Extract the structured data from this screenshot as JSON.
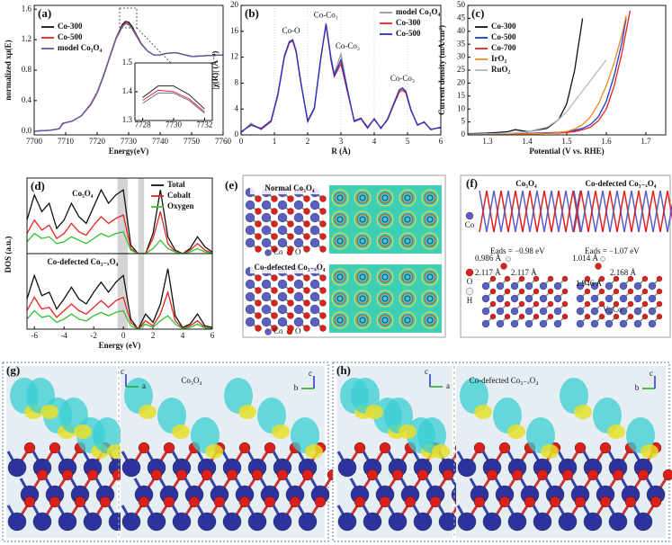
{
  "chart_data": [
    {
      "type": "line",
      "label": "(a)",
      "xlabel": "Energy(eV)",
      "ylabel": "normalized xμ(E)",
      "x": [
        7700,
        7705,
        7708,
        7709,
        7710,
        7712,
        7715,
        7718,
        7720,
        7722,
        7724,
        7726,
        7728,
        7729,
        7730,
        7731,
        7732,
        7734,
        7736,
        7738,
        7740,
        7742,
        7745,
        7748,
        7750,
        7755,
        7760
      ],
      "series": [
        {
          "name": "Co-300",
          "color": "#111111",
          "values": [
            0.0,
            0.01,
            0.03,
            0.1,
            0.11,
            0.13,
            0.2,
            0.35,
            0.5,
            0.72,
            0.97,
            1.22,
            1.4,
            1.44,
            1.43,
            1.38,
            1.3,
            1.15,
            1.05,
            1.0,
            1.0,
            1.02,
            1.03,
            1.0,
            0.98,
            0.99,
            1.0
          ]
        },
        {
          "name": "Co-500",
          "color": "#e8231f",
          "values": [
            0.0,
            0.01,
            0.03,
            0.1,
            0.11,
            0.13,
            0.2,
            0.36,
            0.51,
            0.73,
            0.98,
            1.22,
            1.38,
            1.42,
            1.41,
            1.36,
            1.29,
            1.15,
            1.05,
            1.0,
            1.0,
            1.02,
            1.03,
            1.0,
            0.98,
            0.99,
            1.0
          ]
        },
        {
          "name": "model Co₃O₄",
          "color": "#5c5fb0",
          "values": [
            0.0,
            0.01,
            0.03,
            0.09,
            0.11,
            0.13,
            0.2,
            0.35,
            0.5,
            0.72,
            0.97,
            1.21,
            1.37,
            1.41,
            1.4,
            1.35,
            1.28,
            1.14,
            1.05,
            1.0,
            1.0,
            1.02,
            1.03,
            1.0,
            0.98,
            0.99,
            1.0
          ]
        }
      ],
      "xlim": [
        7700,
        7760
      ],
      "xticks": [
        7700,
        7710,
        7720,
        7730,
        7740,
        7750,
        7760
      ],
      "ylim": [
        -0.05,
        1.65
      ],
      "yticks": [
        {
          "value": 0,
          "label": "0.0"
        },
        0.4,
        0.8,
        1.2,
        1.6
      ],
      "legend": "top-left"
    },
    {
      "type": "line",
      "x": [
        7728,
        7729,
        7730,
        7731,
        7732
      ],
      "series": [
        {
          "color": "#111111",
          "values": [
            1.38,
            1.42,
            1.42,
            1.39,
            1.34
          ]
        },
        {
          "color": "#e8231f",
          "values": [
            1.37,
            1.405,
            1.4,
            1.375,
            1.33
          ]
        },
        {
          "color": "#5c5fb0",
          "values": [
            1.36,
            1.395,
            1.395,
            1.37,
            1.325
          ]
        }
      ],
      "xlim": [
        7727.5,
        7732.5
      ],
      "xticks": [
        7728,
        7730,
        7732
      ],
      "ylim": [
        1.3,
        1.5
      ],
      "yticks": [
        1.3,
        1.4,
        1.5
      ]
    },
    {
      "type": "line",
      "label": "(b)",
      "xlabel": "R (Å)",
      "ylabel": "|χ(R)| (Å⁻⁴)",
      "x": [
        0,
        0.3,
        0.6,
        0.9,
        1.1,
        1.3,
        1.45,
        1.55,
        1.65,
        1.8,
        2.0,
        2.2,
        2.4,
        2.55,
        2.7,
        2.8,
        3.0,
        3.2,
        3.4,
        3.6,
        3.8,
        4.0,
        4.2,
        4.4,
        4.6,
        4.75,
        4.85,
        4.95,
        5.1,
        5.3,
        5.5,
        5.7,
        6.0
      ],
      "series": [
        {
          "name": "model Co₃O₄",
          "color": "#9a9a9a",
          "values": [
            0.3,
            1.8,
            0.8,
            2.0,
            6,
            12,
            14.3,
            14.6,
            13,
            8,
            2,
            4,
            12,
            17.3,
            12,
            9.5,
            12.5,
            7,
            2,
            2.5,
            1,
            2.5,
            1,
            2.5,
            5,
            7,
            7.3,
            6.8,
            4,
            1.5,
            2,
            0.8,
            1.2
          ]
        },
        {
          "name": "Co-300",
          "color": "#e8231f",
          "values": [
            0.4,
            1.6,
            0.9,
            2.1,
            6,
            12,
            14.2,
            14.5,
            12.8,
            7.8,
            2.2,
            4.2,
            12,
            17.1,
            11.5,
            9,
            11,
            6.5,
            2.2,
            2.6,
            1.2,
            2.4,
            1.1,
            2.3,
            4.8,
            6.6,
            6.9,
            6.5,
            3.8,
            1.6,
            1.9,
            0.9,
            1.1
          ]
        },
        {
          "name": "Co-500",
          "color": "#2233cc",
          "values": [
            0.5,
            1.5,
            1.0,
            2.2,
            6.2,
            12.2,
            14.4,
            14.7,
            13,
            8,
            2.1,
            4.1,
            12.1,
            17.0,
            11.8,
            9.2,
            11.6,
            6.8,
            2.1,
            2.5,
            1.1,
            2.5,
            1.0,
            2.4,
            5,
            6.9,
            7.2,
            6.7,
            3.9,
            1.5,
            2,
            0.8,
            1.2
          ]
        }
      ],
      "xlim": [
        0,
        6
      ],
      "xticks": [
        0,
        1,
        2,
        3,
        4,
        5,
        6
      ],
      "ylim": [
        0,
        20
      ],
      "yticks": [
        0,
        4,
        8,
        12,
        16,
        20
      ],
      "grid": "x",
      "legend": "top-right",
      "annotations": [
        {
          "text": "Co-O",
          "x": 1.5,
          "y": 16
        },
        {
          "text": "Co-Co₁",
          "x": 2.55,
          "y": 18.4
        },
        {
          "text": "Co-Co₂",
          "x": 3.2,
          "y": 13.6
        },
        {
          "text": "Co-Co₃",
          "x": 4.85,
          "y": 8.6
        }
      ]
    },
    {
      "type": "line",
      "label": "(c)",
      "xlabel": "Potential (V vs. RHE)",
      "ylabel": "Current density (mA/cm²)",
      "x": [
        1.25,
        1.3,
        1.35,
        1.37,
        1.4,
        1.45,
        1.48,
        1.5,
        1.52,
        1.54,
        1.56,
        1.58,
        1.6,
        1.62,
        1.64,
        1.65,
        1.66,
        1.7
      ],
      "series": [
        {
          "name": "Co-300",
          "color": "#111111",
          "values": [
            0.5,
            0.7,
            1.2,
            2.0,
            1.3,
            2.5,
            6,
            12,
            25,
            45,
            null,
            null,
            null,
            null,
            null,
            null,
            null,
            null
          ]
        },
        {
          "name": "Co-500",
          "color": "#1f3bd1",
          "values": [
            0.2,
            0.3,
            0.4,
            0.5,
            0.6,
            0.8,
            1.0,
            1.3,
            1.8,
            2.5,
            4,
            7,
            13,
            23,
            36,
            45,
            null,
            null
          ]
        },
        {
          "name": "Co-700",
          "color": "#e8231f",
          "values": [
            0.1,
            0.2,
            0.3,
            0.4,
            0.5,
            0.6,
            0.7,
            0.9,
            1.3,
            2,
            3,
            5.5,
            10,
            19,
            32,
            40,
            48,
            null
          ]
        },
        {
          "name": "IrO₂",
          "color": "#f08a1c",
          "values": [
            0.1,
            0.2,
            0.3,
            0.3,
            0.4,
            0.6,
            0.9,
            1.3,
            2.3,
            4,
            7,
            12,
            19,
            28,
            39,
            46,
            null,
            null
          ]
        },
        {
          "name": "RuO₂",
          "color": "#b8b8b8",
          "values": [
            0.3,
            0.4,
            0.6,
            0.8,
            1.2,
            3,
            6,
            9,
            13,
            17,
            21,
            25,
            29,
            null,
            null,
            null,
            null,
            null
          ]
        }
      ],
      "xlim": [
        1.25,
        1.75
      ],
      "xticks": [
        1.3,
        1.4,
        1.5,
        1.6,
        1.7
      ],
      "ylim": [
        0,
        50
      ],
      "yticks": [
        0,
        5,
        10,
        15,
        20,
        25,
        30,
        35,
        40,
        45,
        50
      ],
      "legend": "top-left"
    },
    {
      "type": "line",
      "label": "(d)",
      "title": "Co₃O₄",
      "ylabel": "DOS (a.u.)",
      "x": [
        -6.5,
        -6,
        -5.5,
        -5,
        -4.5,
        -4,
        -3.5,
        -3,
        -2.5,
        -2,
        -1.5,
        -1,
        -0.5,
        0,
        0.5,
        1,
        1.5,
        2,
        2.5,
        3,
        3.5,
        4,
        4.5,
        5,
        5.5,
        6
      ],
      "series": [
        {
          "name": "Total",
          "color": "#111111",
          "values": [
            20,
            35,
            25,
            30,
            15,
            20,
            30,
            22,
            18,
            28,
            38,
            30,
            35,
            38,
            5,
            0,
            0,
            12,
            38,
            10,
            2,
            0,
            3,
            10,
            4,
            1
          ]
        },
        {
          "name": "Cobalt",
          "color": "#e8231f",
          "values": [
            12,
            20,
            14,
            17,
            9,
            12,
            18,
            13,
            11,
            17,
            22,
            18,
            21,
            23,
            3,
            0,
            0,
            9,
            25,
            6,
            1,
            0,
            2,
            6,
            2,
            0.5
          ]
        },
        {
          "name": "Oxygen",
          "color": "#2fc42f",
          "values": [
            7,
            12,
            9,
            10,
            6,
            7,
            10,
            8,
            6,
            9,
            12,
            10,
            12,
            13,
            2,
            0,
            0,
            3,
            8,
            3,
            1,
            0,
            1,
            3,
            1,
            0.3
          ]
        }
      ],
      "shaded": [
        [
          -0.4,
          0.3
        ],
        [
          1.0,
          1.4
        ]
      ],
      "xlim": [
        -6.5,
        6
      ],
      "ylim": [
        0,
        45
      ],
      "legend": "top-right"
    },
    {
      "type": "line",
      "title": "Co-defected Co₃₋ₓO₄",
      "xlabel": "Energy (eV)",
      "x": [
        -6.5,
        -6,
        -5.5,
        -5,
        -4.5,
        -4,
        -3.5,
        -3,
        -2.5,
        -2,
        -1.5,
        -1,
        -0.5,
        0,
        0.5,
        1,
        1.5,
        2,
        2.5,
        3,
        3.5,
        4,
        4.5,
        5,
        5.5,
        6
      ],
      "series": [
        {
          "color": "#111111",
          "values": [
            18,
            32,
            20,
            22,
            12,
            18,
            25,
            18,
            15,
            22,
            28,
            22,
            28,
            32,
            6,
            0,
            9,
            4,
            15,
            36,
            8,
            1,
            3,
            9,
            2,
            1
          ]
        },
        {
          "color": "#e8231f",
          "values": [
            11,
            19,
            12,
            13,
            7,
            11,
            15,
            11,
            9,
            13,
            17,
            13,
            17,
            19,
            4,
            0,
            5,
            2,
            9,
            22,
            5,
            0.6,
            2,
            5,
            1,
            0.5
          ]
        },
        {
          "color": "#2fc42f",
          "values": [
            6,
            11,
            7,
            8,
            4,
            6,
            9,
            6,
            5,
            8,
            10,
            8,
            10,
            11,
            2,
            0,
            3,
            1,
            5,
            8,
            3,
            0.3,
            1,
            3,
            0.7,
            0.3
          ]
        }
      ],
      "shaded": [
        [
          -0.4,
          0.3
        ],
        [
          1.0,
          1.4
        ]
      ],
      "xlim": [
        -6.5,
        6
      ],
      "xticks": [
        -6,
        -4,
        -2,
        0,
        2,
        4,
        6
      ],
      "ylim": [
        0,
        45
      ]
    }
  ],
  "panels": {
    "e": {
      "label": "(e)",
      "top_title": "Normal Co₃O₄",
      "bottom_title": "Co-defected Co₃₋ₓO₄",
      "legend": [
        "Co",
        "O",
        "Co",
        "O"
      ]
    },
    "f": {
      "label": "(f)",
      "titles": [
        "Co₃O₄",
        "Co-defected Co₃₋ₓO₄"
      ],
      "legend": [
        "Co",
        "O",
        "H"
      ],
      "energies": [
        "Eads = −0.98 eV",
        "Eads = −1.07 eV"
      ],
      "bonds": [
        "0.986 Å",
        "2.117 Å",
        "2.117 Å",
        "1.014 Å",
        "2.168 Å",
        "1.946 Å"
      ],
      "vacancy": "V_Co"
    },
    "g": {
      "label": "(g)",
      "title": "Co₃O₄",
      "axes": [
        "c",
        "a",
        "c",
        "b"
      ]
    },
    "h": {
      "label": "(h)",
      "title": "Co-defected Co₃₋ₓO₄",
      "axes": [
        "c",
        "a",
        "c",
        "b"
      ]
    }
  }
}
